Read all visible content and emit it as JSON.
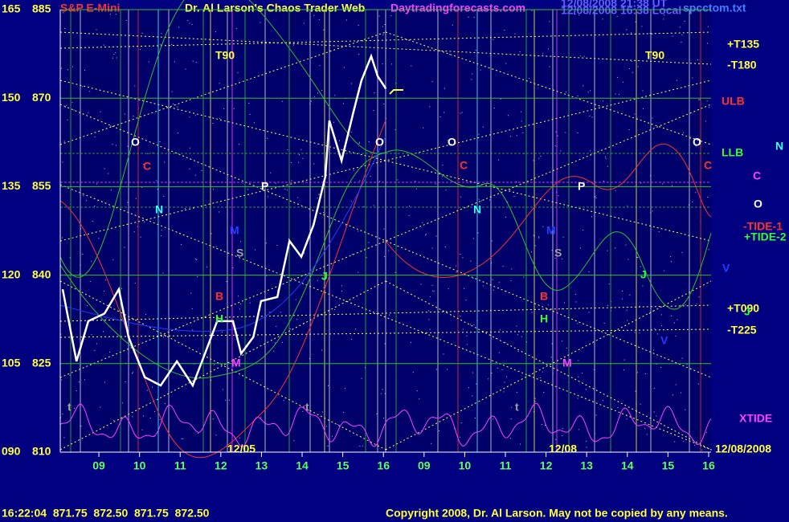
{
  "chart_data": {
    "type": "line",
    "symbol": "S&P E-Mini",
    "title": "Dr. Al Larson's Chaos Trader Web",
    "site": "Daytradingforecasts.com",
    "timestamp_lines": [
      "12/08/2008 21:38 UT",
      "12/08/2008 16:38 Local"
    ],
    "file": "spcctom.txt",
    "quote": "16:22:04  871.75  872.50  871.75  872.50",
    "copyright": "Copyright 2008, Dr. Al Larson. May not be copied by any means.",
    "date_labels": [
      "12/05",
      "12/08",
      "12/08/2008"
    ],
    "grid": true,
    "background": "#000080",
    "x": [
      0.11,
      0.45,
      0.74,
      1.14,
      1.49,
      1.73,
      2.13,
      2.52,
      2.92,
      3.31,
      3.61,
      3.91,
      4.3,
      4.5,
      4.8,
      4.99,
      5.39,
      5.69,
      5.98,
      6.28,
      6.57,
      6.67,
      6.97,
      7.26,
      7.46,
      7.7,
      7.86,
      8.06
    ],
    "series": [
      {
        "name": "S&P E-Mini",
        "color": "#ffffff",
        "values": [
          837.6,
          825.4,
          832.2,
          833.5,
          837.6,
          829.5,
          822.7,
          821.3,
          825.4,
          821.3,
          826.7,
          832.2,
          832.2,
          826.7,
          829.5,
          835.6,
          836.3,
          845.8,
          843.1,
          848.5,
          856.7,
          866.2,
          859.4,
          867.6,
          873.0,
          877.1,
          873.7,
          871.6
        ]
      }
    ],
    "xlim": [
      0.05,
      16.06
    ],
    "xticks": [
      {
        "value": 1,
        "label": "09"
      },
      {
        "value": 2,
        "label": "10"
      },
      {
        "value": 3,
        "label": "11"
      },
      {
        "value": 4,
        "label": "12"
      },
      {
        "value": 5,
        "label": "13"
      },
      {
        "value": 6,
        "label": "14"
      },
      {
        "value": 7,
        "label": "15"
      },
      {
        "value": 8,
        "label": "16"
      },
      {
        "value": 9,
        "label": "09"
      },
      {
        "value": 10,
        "label": "10"
      },
      {
        "value": 11,
        "label": "11"
      },
      {
        "value": 12,
        "label": "12"
      },
      {
        "value": 13,
        "label": "13"
      },
      {
        "value": 14,
        "label": "14"
      },
      {
        "value": 15,
        "label": "15"
      },
      {
        "value": 16,
        "label": "16"
      }
    ],
    "ylim": [
      810,
      885
    ],
    "yticks": [
      810,
      825,
      840,
      855,
      870,
      885
    ],
    "y2lim": [
      90,
      165
    ],
    "y2ticks": [
      {
        "value": 90,
        "label": "090"
      },
      105,
      120,
      135,
      150,
      165
    ],
    "annotations": [
      {
        "text": "T90",
        "color": "#ffff40"
      },
      {
        "text": "O",
        "color": "#ffffff"
      },
      {
        "text": "C",
        "color": "#ff3030"
      },
      {
        "text": "N",
        "color": "#40ffff"
      },
      {
        "text": "P",
        "color": "#ffffff"
      },
      {
        "text": "M",
        "color": "#2040ff"
      },
      {
        "text": "S",
        "color": "#a0a0a0"
      },
      {
        "text": "B",
        "color": "#ff3030"
      },
      {
        "text": "H",
        "color": "#30ff30"
      },
      {
        "text": "M",
        "color": "#ff40ff"
      },
      {
        "text": "J",
        "color": "#30ff30"
      },
      {
        "text": "t",
        "color": "#a0a0a0"
      },
      {
        "text": "t",
        "color": "#a0a0a0"
      },
      {
        "text": "O",
        "color": "#ffffff"
      },
      {
        "text": "T90",
        "color": "#ffff40"
      },
      {
        "text": "O",
        "color": "#ffffff"
      },
      {
        "text": "C",
        "color": "#ff3030"
      },
      {
        "text": "N",
        "color": "#40ffff"
      },
      {
        "text": "P",
        "color": "#ffffff"
      },
      {
        "text": "M",
        "color": "#2040ff"
      },
      {
        "text": "S",
        "color": "#a0a0a0"
      },
      {
        "text": "B",
        "color": "#ff3030"
      },
      {
        "text": "H",
        "color": "#30ff30"
      },
      {
        "text": "M",
        "color": "#ff40ff"
      },
      {
        "text": "J",
        "color": "#30ff30"
      },
      {
        "text": "V",
        "color": "#2040ff"
      },
      {
        "text": "t",
        "color": "#a0a0a0"
      },
      {
        "text": "O",
        "color": "#ffffff"
      },
      {
        "text": "C",
        "color": "#ff3030"
      },
      {
        "text": "+T135",
        "color": "#ffff40"
      },
      {
        "text": "-T180",
        "color": "#ffff40"
      },
      {
        "text": "ULB",
        "color": "#ff3030"
      },
      {
        "text": "LLB",
        "color": "#30ff30"
      },
      {
        "text": "N",
        "color": "#40ffff"
      },
      {
        "text": "C",
        "color": "#ff40ff"
      },
      {
        "text": "O",
        "color": "#ffffff"
      },
      {
        "text": "-TIDE-1",
        "color": "#ff3030"
      },
      {
        "text": "+TIDE-2",
        "color": "#30ff30"
      },
      {
        "text": "V",
        "color": "#2040ff"
      },
      {
        "text": "+T090",
        "color": "#ffff40"
      },
      {
        "text": "J",
        "color": "#30ff30"
      },
      {
        "text": "-T225",
        "color": "#ffff40"
      },
      {
        "text": "XTIDE",
        "color": "#ff40ff"
      }
    ]
  }
}
